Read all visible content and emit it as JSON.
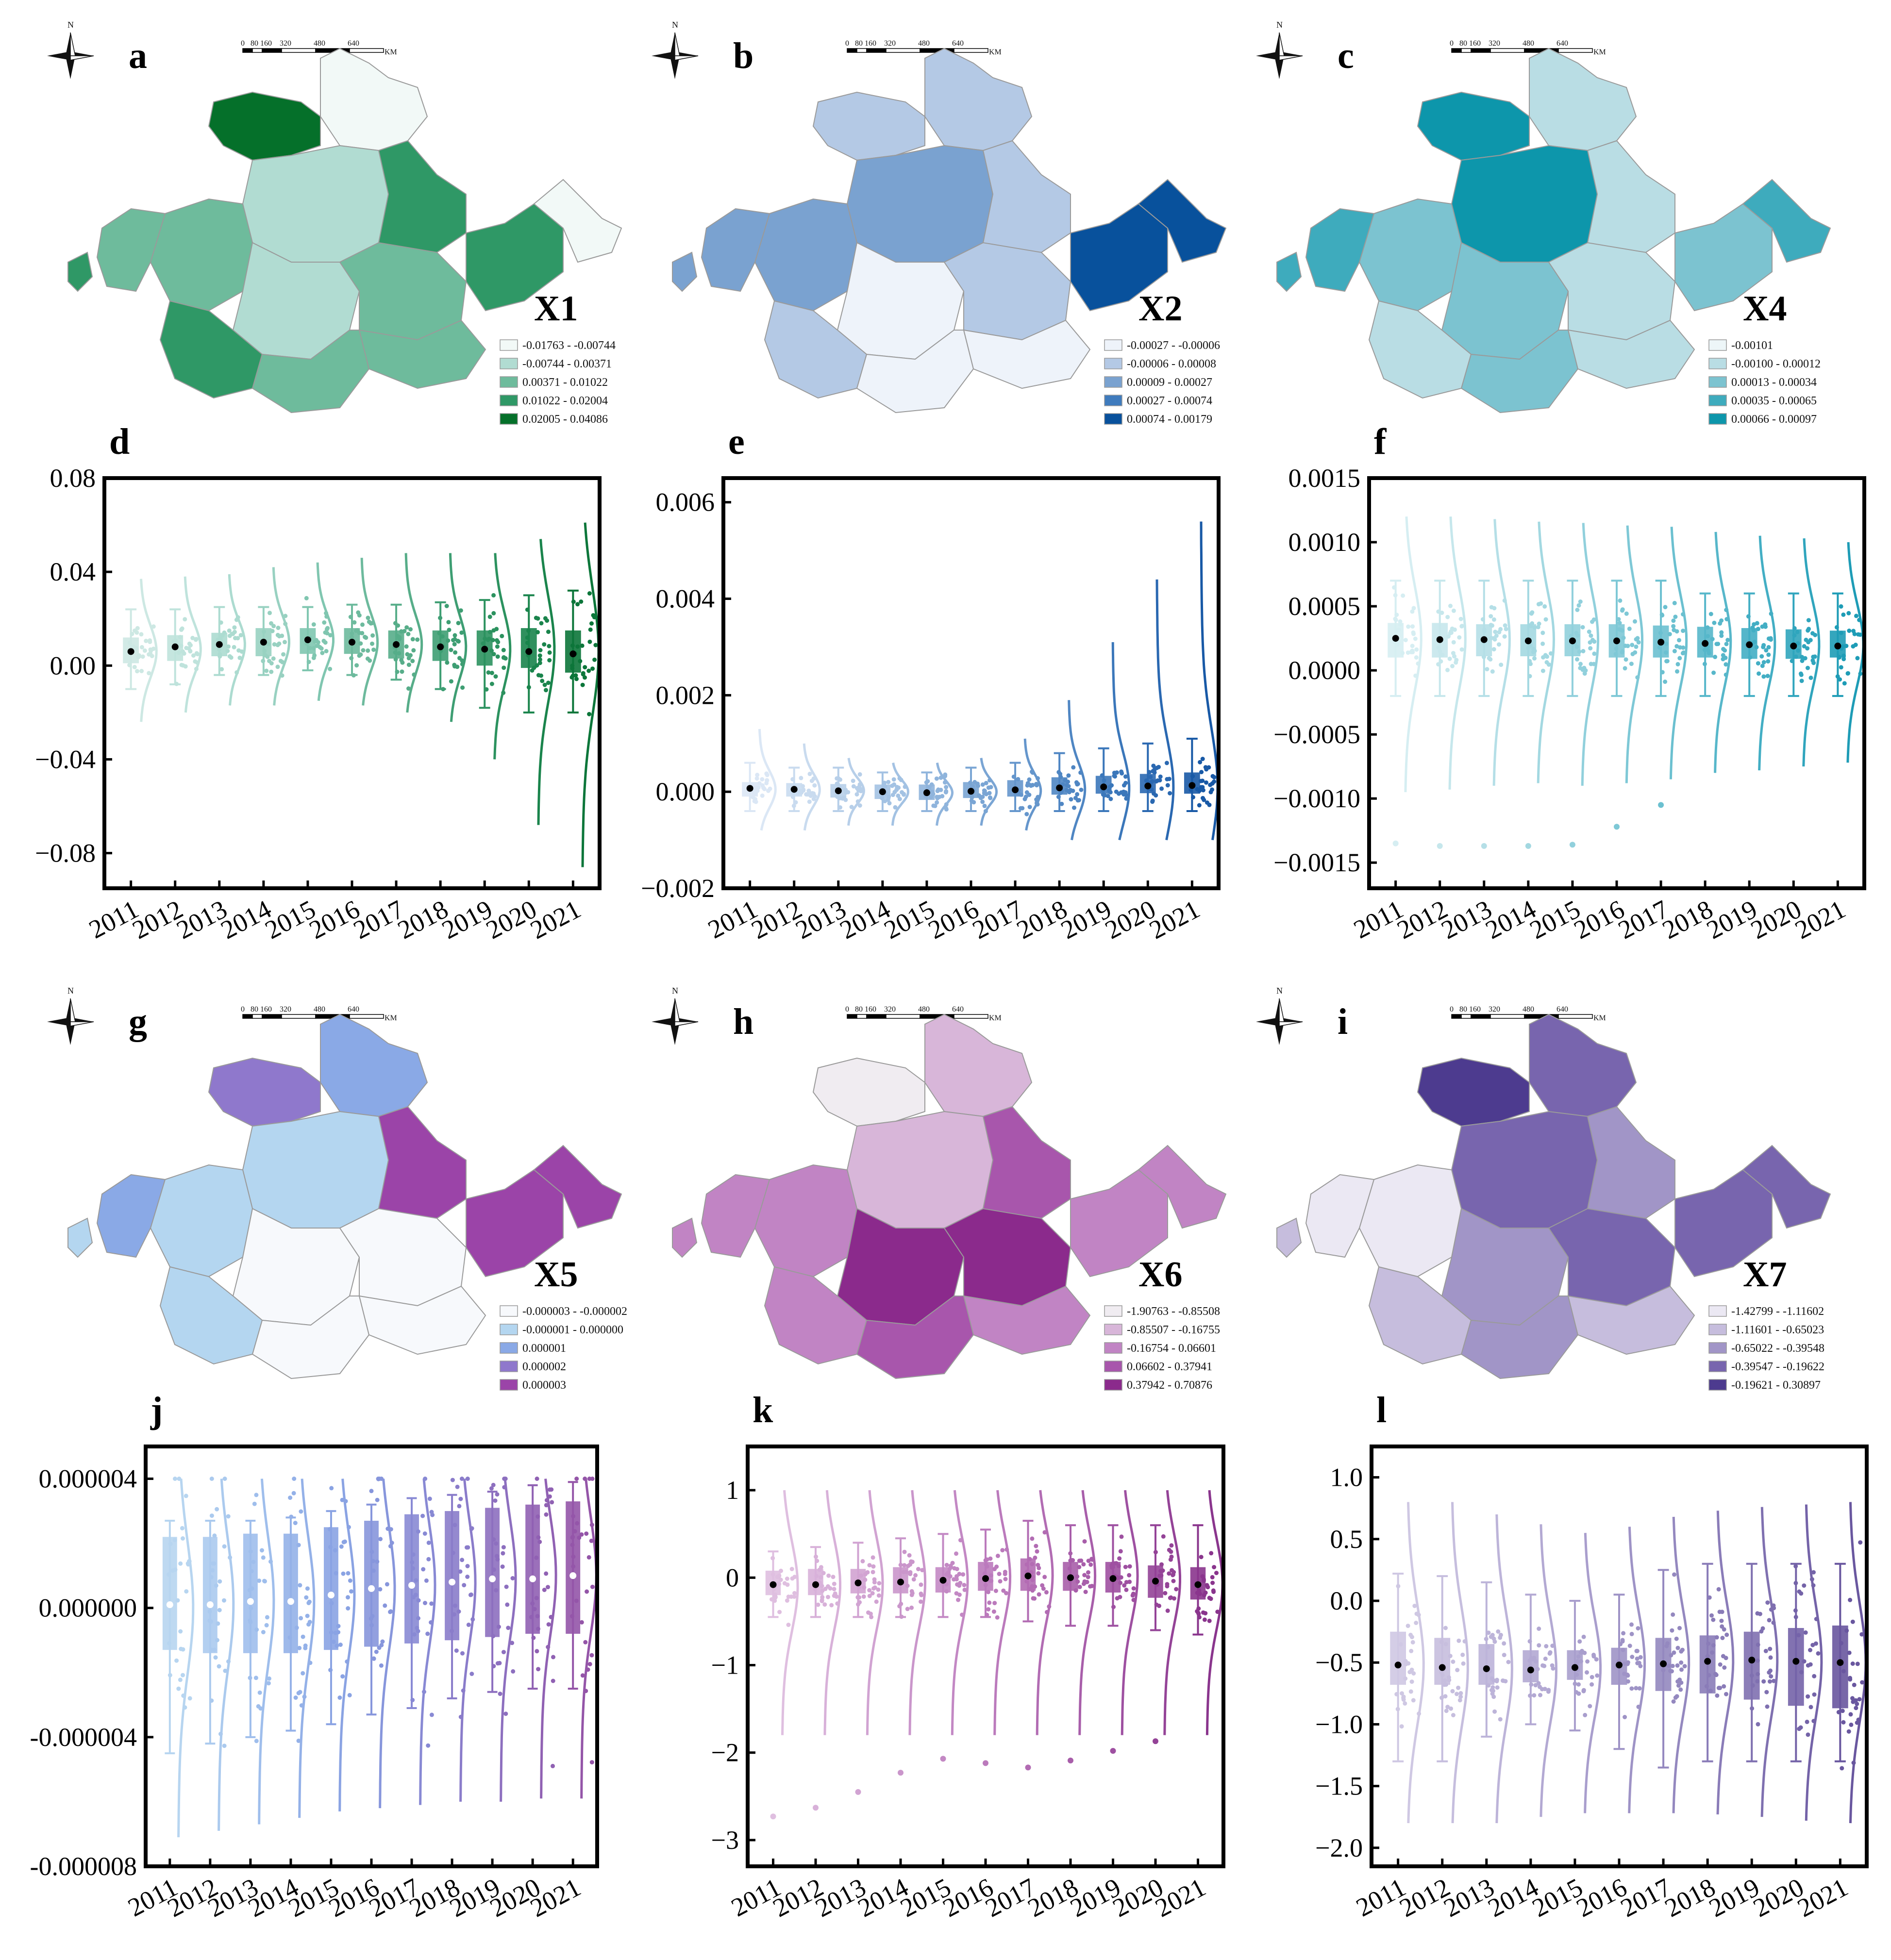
{
  "years": [
    "2011",
    "2012",
    "2013",
    "2014",
    "2015",
    "2016",
    "2017",
    "2018",
    "2019",
    "2020",
    "2021"
  ],
  "scale_labels": [
    "0",
    "80",
    "160",
    "320",
    "480",
    "640"
  ],
  "scale_unit": "KM",
  "north_label": "N",
  "maps": [
    {
      "panel": "a",
      "variable": "X1",
      "colors": [
        "#f2f9f7",
        "#b1dcd2",
        "#6ebb9c",
        "#2f9866",
        "#05702a"
      ],
      "legend": [
        "-0.01763 - -0.00744",
        "-0.00744 - 0.00371",
        "0.00371 - 0.01022",
        "0.01022 - 0.02004",
        "0.02005 - 0.04086"
      ]
    },
    {
      "panel": "b",
      "variable": "X2",
      "colors": [
        "#eef3fa",
        "#b4c9e5",
        "#7aa2d0",
        "#3f7bbd",
        "#08519c"
      ],
      "legend": [
        "-0.00027 - -0.00006",
        "-0.00006 - 0.00008",
        "0.00009 - 0.00027",
        "0.00027 - 0.00074",
        "0.00074 - 0.00179"
      ]
    },
    {
      "panel": "c",
      "variable": "X4",
      "colors": [
        "#edf6f8",
        "#b9dde4",
        "#7cc3d0",
        "#3eabbd",
        "#0d96ab"
      ],
      "legend": [
        "-0.00101",
        "-0.00100 - 0.00012",
        "0.00013 - 0.00034",
        "0.00035 - 0.00065",
        "0.00066 - 0.00097"
      ]
    },
    {
      "panel": "g",
      "variable": "X5",
      "colors": [
        "#f7f9fc",
        "#b4d6f0",
        "#8aa9e6",
        "#8f78cc",
        "#9b44a8"
      ],
      "legend": [
        "-0.000003 - -0.000002",
        "-0.000001 - 0.000000",
        "0.000001",
        "0.000002",
        "0.000003"
      ]
    },
    {
      "panel": "h",
      "variable": "X6",
      "colors": [
        "#f0ecf1",
        "#d8b6d9",
        "#c184c4",
        "#a856ac",
        "#8b2a8c"
      ],
      "legend": [
        "-1.90763 - -0.85508",
        "-0.85507 - -0.16755",
        "-0.16754 - 0.06601",
        "0.06602 - 0.37941",
        "0.37942 - 0.70876"
      ]
    },
    {
      "panel": "i",
      "variable": "X7",
      "colors": [
        "#ebe8f3",
        "#c6bddd",
        "#a195c7",
        "#7865ae",
        "#4d3b8f"
      ],
      "legend": [
        "-1.42799 - -1.11602",
        "-1.11601 - -0.65023",
        "-0.65022 - -0.39548",
        "-0.39547 - -0.19622",
        "-0.19621 - 0.30897"
      ]
    }
  ],
  "chart_data": [
    {
      "panel": "d",
      "variable": "X1",
      "type": "box+violin",
      "categories": [
        "2011",
        "2012",
        "2013",
        "2014",
        "2015",
        "2016",
        "2017",
        "2018",
        "2019",
        "2020",
        "2021"
      ],
      "ylim": [
        -0.095,
        0.08
      ],
      "yticks": [
        0.08,
        0.04,
        0.0,
        -0.04,
        -0.08
      ],
      "ytick_labels": [
        "0.08",
        "0.04",
        "0.00",
        "−0.04",
        "−0.08"
      ],
      "median": [
        0.006,
        0.007,
        0.009,
        0.01,
        0.011,
        0.01,
        0.009,
        0.008,
        0.007,
        0.007,
        0.006
      ],
      "mean": [
        0.006,
        0.008,
        0.009,
        0.01,
        0.011,
        0.01,
        0.009,
        0.008,
        0.007,
        0.006,
        0.005
      ],
      "q1": [
        0.001,
        0.002,
        0.004,
        0.004,
        0.005,
        0.005,
        0.003,
        0.002,
        0.0,
        -0.001,
        -0.003
      ],
      "q3": [
        0.012,
        0.013,
        0.014,
        0.016,
        0.016,
        0.016,
        0.015,
        0.015,
        0.015,
        0.016,
        0.015
      ],
      "min": [
        -0.01,
        -0.008,
        -0.004,
        -0.004,
        -0.002,
        -0.004,
        -0.006,
        -0.01,
        -0.018,
        -0.02,
        -0.02
      ],
      "max": [
        0.024,
        0.024,
        0.025,
        0.025,
        0.025,
        0.026,
        0.026,
        0.027,
        0.028,
        0.03,
        0.032
      ],
      "dist_low": [
        -0.024,
        -0.02,
        -0.017,
        -0.017,
        -0.015,
        -0.017,
        -0.02,
        -0.024,
        -0.04,
        -0.068,
        -0.086
      ],
      "dist_high": [
        0.037,
        0.038,
        0.039,
        0.042,
        0.044,
        0.046,
        0.048,
        0.048,
        0.048,
        0.054,
        0.061
      ],
      "colors": [
        "#cde8e3",
        "#bfe3dc",
        "#acdbd0",
        "#98d1c1",
        "#80c6b0",
        "#6dba9d",
        "#57ad89",
        "#3e9e73",
        "#2c925f",
        "#1a844c",
        "#0c763a"
      ]
    },
    {
      "panel": "e",
      "variable": "X2",
      "type": "box+violin",
      "categories": [
        "2011",
        "2012",
        "2013",
        "2014",
        "2015",
        "2016",
        "2017",
        "2018",
        "2019",
        "2020",
        "2021"
      ],
      "ylim": [
        -0.002,
        0.0065
      ],
      "yticks": [
        0.006,
        0.004,
        0.002,
        0.0,
        -0.002
      ],
      "ytick_labels": [
        "0.006",
        "0.004",
        "0.002",
        "0.000",
        "−0.002"
      ],
      "median": [
        5e-05,
        4e-05,
        2e-05,
        0.0,
        -2e-05,
        0.0,
        2e-05,
        5e-05,
        7e-05,
        9e-05,
        9e-05
      ],
      "mean": [
        7e-05,
        5e-05,
        2e-05,
        0.0,
        -2e-05,
        1e-05,
        4e-05,
        8e-05,
        0.0001,
        0.00012,
        0.00013
      ],
      "q1": [
        -0.0001,
        -0.0001,
        -0.00012,
        -0.00015,
        -0.00017,
        -0.00013,
        -0.0001,
        -6e-05,
        -4e-05,
        -3e-05,
        -4e-05
      ],
      "q3": [
        0.0002,
        0.00018,
        0.00016,
        0.00015,
        0.00015,
        0.0002,
        0.00024,
        0.0003,
        0.00033,
        0.00037,
        0.0004
      ],
      "min": [
        -0.0004,
        -0.0004,
        -0.0004,
        -0.0004,
        -0.0004,
        -0.0004,
        -0.0004,
        -0.0004,
        -0.0004,
        -0.0004,
        -0.0004
      ],
      "max": [
        0.0006,
        0.0005,
        0.0005,
        0.0004,
        0.0004,
        0.0005,
        0.0006,
        0.0008,
        0.0009,
        0.001,
        0.0011
      ],
      "dist_low": [
        -0.0008,
        -0.0008,
        -0.0007,
        -0.0007,
        -0.0007,
        -0.0007,
        -0.0008,
        -0.001,
        -0.001,
        -0.001,
        -0.001
      ],
      "dist_high": [
        0.0013,
        0.001,
        0.0007,
        0.0006,
        0.0006,
        0.0007,
        0.0011,
        0.0019,
        0.0031,
        0.0044,
        0.0056
      ],
      "colors": [
        "#dbe7f5",
        "#c9dbef",
        "#b7cfe9",
        "#a3c2e3",
        "#8fb4dc",
        "#7aa5d4",
        "#6596cc",
        "#4f86c3",
        "#3b77ba",
        "#2a68b1",
        "#1859a6"
      ]
    },
    {
      "panel": "f",
      "variable": "X4",
      "type": "box+violin",
      "categories": [
        "2011",
        "2012",
        "2013",
        "2014",
        "2015",
        "2016",
        "2017",
        "2018",
        "2019",
        "2020",
        "2021"
      ],
      "ylim": [
        -0.0017,
        0.0015
      ],
      "yticks": [
        0.0015,
        0.001,
        0.0005,
        0.0,
        -0.0005,
        -0.001,
        -0.0015
      ],
      "ytick_labels": [
        "0.0015",
        "0.0010",
        "0.0005",
        "0.0000",
        "−0.0005",
        "−0.0010",
        "−0.0015"
      ],
      "median": [
        0.00025,
        0.00025,
        0.00024,
        0.00024,
        0.00024,
        0.00023,
        0.00023,
        0.00022,
        0.00021,
        0.0002,
        0.0002
      ],
      "mean": [
        0.00025,
        0.00024,
        0.00024,
        0.00023,
        0.00023,
        0.00023,
        0.00022,
        0.00021,
        0.0002,
        0.00019,
        0.00019
      ],
      "q1": [
        0.0001,
        0.0001,
        0.00011,
        0.00011,
        0.00011,
        0.0001,
        0.0001,
        0.0001,
        9e-05,
        9e-05,
        0.0001
      ],
      "q3": [
        0.00037,
        0.00037,
        0.00036,
        0.00036,
        0.00036,
        0.00036,
        0.00035,
        0.00034,
        0.00033,
        0.00032,
        0.00031
      ],
      "min": [
        -0.0002,
        -0.0002,
        -0.0002,
        -0.0002,
        -0.0002,
        -0.0002,
        -0.0002,
        -0.0002,
        -0.0002,
        -0.0002,
        -0.0002
      ],
      "max": [
        0.0007,
        0.0007,
        0.0007,
        0.0007,
        0.0007,
        0.0007,
        0.0007,
        0.0006,
        0.0006,
        0.0006,
        0.0006
      ],
      "dist_low": [
        -0.00095,
        -0.00093,
        -0.0009,
        -0.00088,
        -0.0009,
        -0.00088,
        -0.00085,
        -0.0008,
        -0.00078,
        -0.00075,
        -0.00072
      ],
      "dist_high": [
        0.0012,
        0.0012,
        0.00118,
        0.00116,
        0.00115,
        0.00113,
        0.00112,
        0.00108,
        0.00105,
        0.00103,
        0.001
      ],
      "outliers": [
        -0.00135,
        -0.00137,
        -0.00137,
        -0.00137,
        -0.00136,
        -0.00122,
        -0.00105,
        null,
        null,
        null,
        null
      ],
      "colors": [
        "#d6eef2",
        "#c6e7ec",
        "#b5dfe7",
        "#a3d8e1",
        "#91d0dc",
        "#7ec8d6",
        "#6bc0d0",
        "#57b7ca",
        "#43aec4",
        "#30a5bd",
        "#1e9cb6"
      ]
    },
    {
      "panel": "j",
      "variable": "X5",
      "type": "box+violin",
      "categories": [
        "2011",
        "2012",
        "2013",
        "2014",
        "2015",
        "2016",
        "2017",
        "2018",
        "2019",
        "2020",
        "2021"
      ],
      "ylim": [
        -8e-06,
        5e-06
      ],
      "yticks": [
        4e-06,
        0.0,
        -4e-06,
        -8e-06
      ],
      "ytick_labels": [
        "0.000004",
        "0.000000",
        "-0.000004",
        "-0.000008"
      ],
      "median": [
        0.0,
        1e-07,
        2e-07,
        2e-07,
        4e-07,
        6e-07,
        7e-07,
        8e-07,
        9e-07,
        1e-06,
        1e-06
      ],
      "mean": [
        1e-07,
        1e-07,
        2e-07,
        2e-07,
        4e-07,
        6e-07,
        7e-07,
        8e-07,
        9e-07,
        9e-07,
        1e-06
      ],
      "q1": [
        -1.3e-06,
        -1.4e-06,
        -1.4e-06,
        -1.4e-06,
        -1.3e-06,
        -1.2e-06,
        -1.1e-06,
        -1e-06,
        -9e-07,
        -8e-07,
        -8e-07
      ],
      "q3": [
        2.2e-06,
        2.2e-06,
        2.3e-06,
        2.3e-06,
        2.5e-06,
        2.7e-06,
        2.9e-06,
        3e-06,
        3.1e-06,
        3.2e-06,
        3.3e-06
      ],
      "min": [
        -4.5e-06,
        -4.2e-06,
        -4e-06,
        -3.8e-06,
        -3.6e-06,
        -3.3e-06,
        -3.1e-06,
        -2.8e-06,
        -2.6e-06,
        -2.5e-06,
        -2.5e-06
      ],
      "max": [
        2.7e-06,
        2.7e-06,
        2.7e-06,
        2.8e-06,
        3e-06,
        3.2e-06,
        3.4e-06,
        3.5e-06,
        3.6e-06,
        3.8e-06,
        3.9e-06
      ],
      "dist_low": [
        -7.1e-06,
        -6.9e-06,
        -6.7e-06,
        -6.5e-06,
        -6.3e-06,
        -6.2e-06,
        -6.1e-06,
        -6e-06,
        -6e-06,
        -5.9e-06,
        -5.9e-06
      ],
      "dist_high": [
        4e-06,
        4e-06,
        4e-06,
        4e-06,
        4e-06,
        4e-06,
        4e-06,
        4e-06,
        4e-06,
        4e-06,
        4e-06
      ],
      "colors": [
        "#b7d5f0",
        "#abcaee",
        "#9fbeec",
        "#94b1e8",
        "#8aa3e3",
        "#8796dc",
        "#8889d4",
        "#8a7cca",
        "#8d6fbf",
        "#9061b3",
        "#9455a8"
      ]
    },
    {
      "panel": "k",
      "variable": "X6",
      "type": "box+violin",
      "categories": [
        "2011",
        "2012",
        "2013",
        "2014",
        "2015",
        "2016",
        "2017",
        "2018",
        "2019",
        "2020",
        "2021"
      ],
      "ylim": [
        -3.3,
        1.5
      ],
      "yticks": [
        1,
        0,
        -1,
        -2,
        -3
      ],
      "ytick_labels": [
        "1",
        "0",
        "−1",
        "−2",
        "−3"
      ],
      "median": [
        -0.1,
        -0.08,
        -0.07,
        -0.05,
        -0.04,
        0.0,
        0.03,
        0.02,
        0.02,
        -0.02,
        -0.07
      ],
      "mean": [
        -0.08,
        -0.08,
        -0.06,
        -0.05,
        -0.03,
        -0.01,
        0.02,
        0.0,
        -0.01,
        -0.04,
        -0.08
      ],
      "q1": [
        -0.2,
        -0.2,
        -0.18,
        -0.18,
        -0.17,
        -0.15,
        -0.15,
        -0.15,
        -0.17,
        -0.23,
        -0.25
      ],
      "q3": [
        0.08,
        0.1,
        0.1,
        0.12,
        0.12,
        0.18,
        0.22,
        0.18,
        0.18,
        0.14,
        0.12
      ],
      "min": [
        -0.45,
        -0.45,
        -0.45,
        -0.45,
        -0.45,
        -0.45,
        -0.5,
        -0.55,
        -0.55,
        -0.6,
        -0.65
      ],
      "max": [
        0.3,
        0.35,
        0.4,
        0.45,
        0.5,
        0.55,
        0.65,
        0.6,
        0.6,
        0.6,
        0.6
      ],
      "dist_low": [
        -1.8,
        -1.8,
        -1.8,
        -1.8,
        -1.8,
        -1.8,
        -1.8,
        -1.8,
        -1.8,
        -1.8,
        -1.8
      ],
      "dist_high": [
        1.0,
        1.0,
        1.0,
        1.0,
        1.0,
        1.0,
        1.0,
        1.0,
        1.0,
        1.0,
        1.0
      ],
      "outliers": [
        -2.73,
        -2.63,
        -2.45,
        -2.23,
        -2.07,
        -2.12,
        -2.17,
        -2.09,
        -1.98,
        -1.87,
        null
      ],
      "colors": [
        "#dfbfe0",
        "#d8b1d9",
        "#d1a3d2",
        "#ca96cb",
        "#c388c4",
        "#bb7abc",
        "#b26cb3",
        "#a85eaa",
        "#9e50a1",
        "#944397",
        "#8a358d"
      ]
    },
    {
      "panel": "l",
      "variable": "X7",
      "type": "box+violin",
      "categories": [
        "2011",
        "2012",
        "2013",
        "2014",
        "2015",
        "2016",
        "2017",
        "2018",
        "2019",
        "2020",
        "2021"
      ],
      "ylim": [
        -2.15,
        1.25
      ],
      "yticks": [
        1.0,
        0.5,
        0.0,
        -0.5,
        -1.0,
        -1.5,
        -2.0
      ],
      "ytick_labels": [
        "1.0",
        "0.5",
        "0.0",
        "−0.5",
        "−1.0",
        "−1.5",
        "−2.0"
      ],
      "median": [
        -0.52,
        -0.54,
        -0.55,
        -0.56,
        -0.54,
        -0.51,
        -0.5,
        -0.48,
        -0.48,
        -0.49,
        -0.5
      ],
      "mean": [
        -0.52,
        -0.54,
        -0.55,
        -0.56,
        -0.54,
        -0.52,
        -0.51,
        -0.49,
        -0.48,
        -0.49,
        -0.5
      ],
      "q1": [
        -0.68,
        -0.68,
        -0.68,
        -0.66,
        -0.64,
        -0.68,
        -0.73,
        -0.75,
        -0.8,
        -0.85,
        -0.87
      ],
      "q3": [
        -0.25,
        -0.3,
        -0.35,
        -0.4,
        -0.4,
        -0.38,
        -0.3,
        -0.28,
        -0.25,
        -0.22,
        -0.2
      ],
      "min": [
        -1.3,
        -1.3,
        -1.1,
        -1.0,
        -1.05,
        -1.2,
        -1.35,
        -1.3,
        -1.3,
        -1.3,
        -1.3
      ],
      "max": [
        0.22,
        0.2,
        0.15,
        0.05,
        0.0,
        0.05,
        0.25,
        0.3,
        0.3,
        0.3,
        0.3
      ],
      "dist_low": [
        -1.8,
        -1.8,
        -1.8,
        -1.75,
        -1.72,
        -1.72,
        -1.72,
        -1.73,
        -1.75,
        -1.78,
        -1.8
      ],
      "dist_high": [
        0.8,
        0.8,
        0.7,
        0.62,
        0.55,
        0.6,
        0.68,
        0.73,
        0.76,
        0.78,
        0.8
      ],
      "colors": [
        "#cfc8e3",
        "#c6bede",
        "#bdb4d9",
        "#b3a9d3",
        "#a99ecd",
        "#9e93c6",
        "#9488bf",
        "#8a7cb8",
        "#7f70b0",
        "#7463a8",
        "#69579f"
      ]
    }
  ]
}
